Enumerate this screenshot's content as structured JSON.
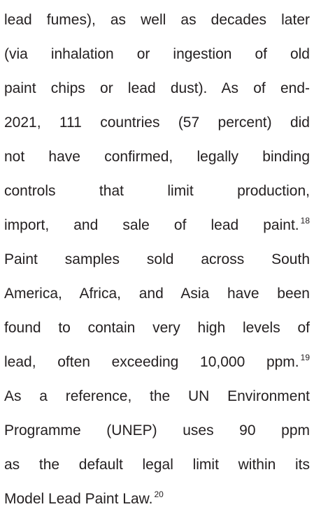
{
  "lines": [
    {
      "text": "lead fumes), as well as decades later"
    },
    {
      "text": "(via inhalation or ingestion of old"
    },
    {
      "text": "paint chips or lead dust). As of end-"
    },
    {
      "text": "2021, 111 countries (57 percent) did"
    },
    {
      "text": "not have confirmed, legally binding"
    },
    {
      "text": "controls that limit production,"
    },
    {
      "text": "import, and sale of lead paint.",
      "sup": "18"
    },
    {
      "text": "Paint samples sold across South"
    },
    {
      "text": "America, Africa, and Asia have been"
    },
    {
      "text": "found to contain very high levels of"
    },
    {
      "text": "lead, often exceeding 10,000 ppm.",
      "sup": "19"
    },
    {
      "text": "As a reference, the UN Environment"
    },
    {
      "text": "Programme (UNEP) uses 90 ppm"
    },
    {
      "text": "as the default legal limit within its"
    },
    {
      "text": "Model Lead Paint Law.",
      "sup": "20"
    }
  ]
}
